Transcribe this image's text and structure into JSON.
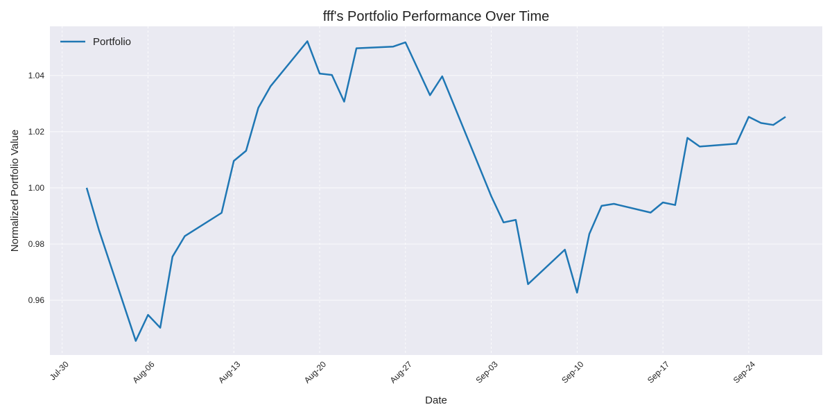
{
  "colors": {
    "plot_background": "#eaeaf2",
    "grid": "#ffffff",
    "series_line": "#1f77b4",
    "text": "#222222"
  },
  "chart_data": {
    "type": "line",
    "title": "fff's Portfolio Performance Over Time",
    "xlabel": "Date",
    "ylabel": "Normalized Portfolio Value",
    "legend": {
      "position": "top-left",
      "entries": [
        "Portfolio"
      ]
    },
    "grid": true,
    "x_tick_labels": [
      "Jul-30",
      "Aug-06",
      "Aug-13",
      "Aug-20",
      "Aug-27",
      "Sep-03",
      "Sep-10",
      "Sep-17",
      "Sep-24"
    ],
    "x_ticks": [
      "2018-07-30",
      "2018-08-06",
      "2018-08-13",
      "2018-08-20",
      "2018-08-27",
      "2018-09-03",
      "2018-09-10",
      "2018-09-17",
      "2018-09-24"
    ],
    "x_range": [
      "2018-07-29",
      "2018-09-30"
    ],
    "y_tick_labels": [
      "0.96",
      "0.98",
      "1.00",
      "1.02",
      "1.04"
    ],
    "y_ticks": [
      0.96,
      0.98,
      1.0,
      1.02,
      1.04
    ],
    "ylim": [
      0.9405,
      1.0575
    ],
    "series": [
      {
        "name": "Portfolio",
        "x": [
          "2018-08-01",
          "2018-08-02",
          "2018-08-05",
          "2018-08-06",
          "2018-08-07",
          "2018-08-08",
          "2018-08-09",
          "2018-08-12",
          "2018-08-13",
          "2018-08-14",
          "2018-08-15",
          "2018-08-16",
          "2018-08-19",
          "2018-08-20",
          "2018-08-21",
          "2018-08-22",
          "2018-08-23",
          "2018-08-26",
          "2018-08-27",
          "2018-08-29",
          "2018-08-30",
          "2018-09-03",
          "2018-09-04",
          "2018-09-05",
          "2018-09-06",
          "2018-09-09",
          "2018-09-10",
          "2018-09-11",
          "2018-09-12",
          "2018-09-13",
          "2018-09-16",
          "2018-09-17",
          "2018-09-18",
          "2018-09-19",
          "2018-09-20",
          "2018-09-23",
          "2018-09-24",
          "2018-09-25",
          "2018-09-26",
          "2018-09-27"
        ],
        "values": [
          1.0,
          0.985,
          0.9455,
          0.9548,
          0.9502,
          0.9755,
          0.9828,
          0.9911,
          1.0096,
          1.0132,
          1.0285,
          1.0362,
          1.0522,
          1.0407,
          1.0402,
          1.0307,
          1.0497,
          1.0503,
          1.0518,
          1.033,
          1.0397,
          0.997,
          0.9877,
          0.9886,
          0.9657,
          0.978,
          0.9627,
          0.9836,
          0.9936,
          0.9943,
          0.9912,
          0.9948,
          0.9939,
          1.0178,
          1.0147,
          1.0157,
          1.0253,
          1.0231,
          1.0224,
          1.0253
        ]
      }
    ]
  }
}
